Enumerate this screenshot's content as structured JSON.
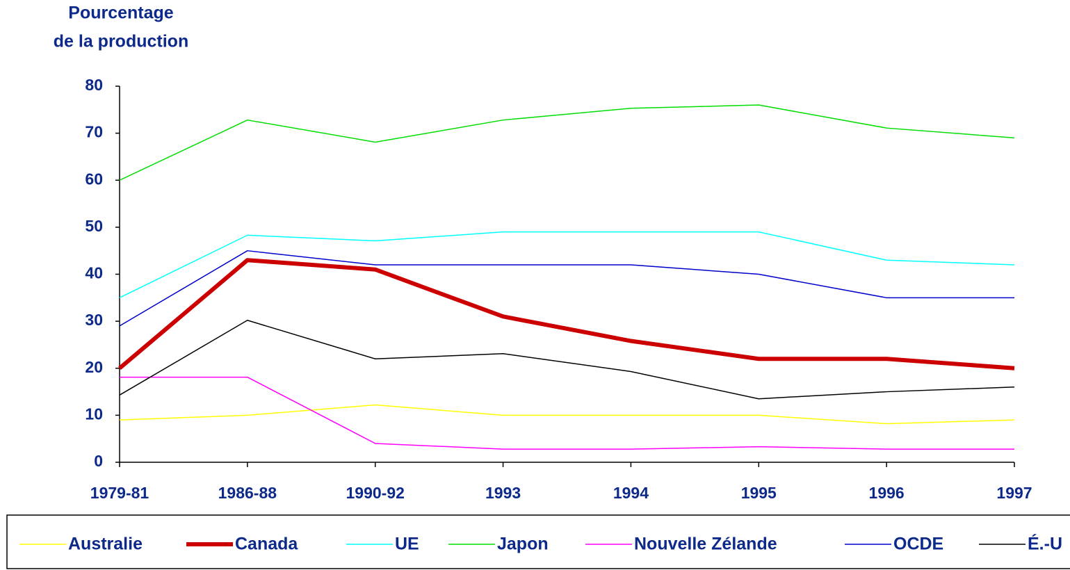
{
  "chart_data": {
    "type": "line",
    "y_label": [
      "Pourcentage",
      "de la production"
    ],
    "categories": [
      "1979-81",
      "1986-88",
      "1990-92",
      "1993",
      "1994",
      "1995",
      "1996",
      "1997"
    ],
    "series": [
      {
        "name": "Australie",
        "color": "#ffff00",
        "width": 1.5,
        "values": [
          9,
          10,
          12.2,
          10,
          10,
          10,
          8.2,
          9
        ]
      },
      {
        "name": "Canada",
        "color": "#cc0000",
        "width": 6,
        "values": [
          20,
          43,
          41,
          31,
          25.8,
          22,
          22,
          20
        ]
      },
      {
        "name": "UE",
        "color": "#00ffff",
        "width": 1.5,
        "values": [
          35,
          48.3,
          47.1,
          49,
          49,
          49,
          43,
          42
        ]
      },
      {
        "name": "Japon",
        "color": "#00dd00",
        "width": 1.5,
        "values": [
          60,
          72.8,
          68.1,
          72.8,
          75.3,
          76,
          71.1,
          69
        ]
      },
      {
        "name": "Nouvelle Zélande",
        "color": "#ff00ff",
        "width": 1.5,
        "values": [
          18.1,
          18.1,
          4,
          2.8,
          2.8,
          3.3,
          2.8,
          2.8
        ]
      },
      {
        "name": "OCDE",
        "color": "#0000cc",
        "width": 1.5,
        "values": [
          29,
          45,
          42,
          42,
          42,
          40,
          35,
          35
        ]
      },
      {
        "name": "É.-U",
        "color": "#000000",
        "width": 1.5,
        "values": [
          14.3,
          30.2,
          22,
          23.1,
          19.3,
          13.5,
          15,
          16
        ]
      }
    ],
    "ylim": [
      0,
      80
    ],
    "yticks": [
      0,
      10,
      20,
      30,
      40,
      50,
      60,
      70,
      80
    ]
  }
}
